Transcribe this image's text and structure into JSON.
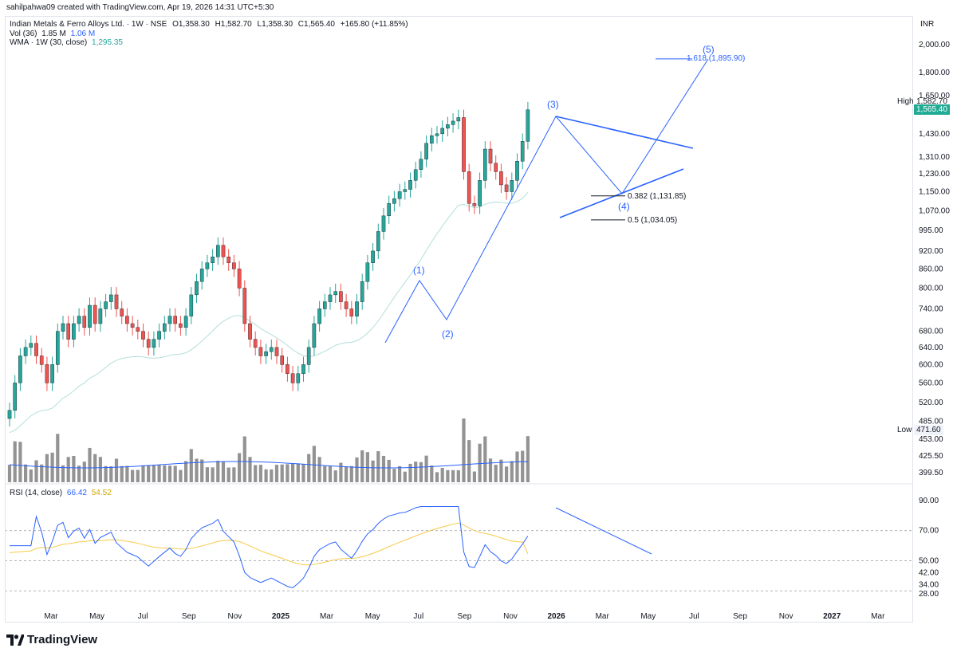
{
  "header": {
    "credit": "sahilpahwa09 created with TradingView.com, Apr 19, 2026 14:31 UTC+5:30",
    "symbol": "Indian Metals & Ferro Alloys Ltd. · 1W · NSE",
    "ohlc_o": "O1,358.30",
    "ohlc_h": "H1,582.70",
    "ohlc_l": "L1,358.30",
    "ohlc_c": "C1,565.40",
    "ohlc_chg": "+165.80 (+11.85%)",
    "vol_label": "Vol (36)",
    "vol_value": "1.85 M",
    "vol_ma": "1.06 M",
    "wma_label": "WMA · 1W (30, close)",
    "wma_value": "1,295.35",
    "rsi_label": "RSI (14, close)",
    "rsi_value": "66.42",
    "rsi_ma": "54.52",
    "currency": "INR"
  },
  "price_tags": {
    "high_label": "High",
    "high_value": "1,582.70",
    "close_value": "1,565.40",
    "low_label": "Low",
    "low_value": "471.60"
  },
  "annotations": {
    "w1": "(1)",
    "w2": "(2)",
    "w3": "(3)",
    "w4": "(4)",
    "w5": "(5)",
    "fib_1618": "1.618 (1,895.90)",
    "fib_0382": "0.382 (1,131.85)",
    "fib_05": "0.5 (1,034.05)"
  },
  "footer": {
    "brand": "TradingView"
  },
  "colors": {
    "up": "#26a69a",
    "down": "#ef5350",
    "volume": "#808080",
    "wma": "#b2dfdb",
    "rsi": "#2962ff",
    "rsi_ma": "#f7c948",
    "drawing": "#2962ff",
    "tag_close": "#22ab94"
  },
  "chart_data": {
    "type": "candlestick",
    "title": "Indian Metals & Ferro Alloys Ltd. · 1W · NSE",
    "x_ticks": [
      "Mar",
      "May",
      "Jul",
      "Sep",
      "Nov",
      "2025",
      "Mar",
      "May",
      "Jul",
      "Sep",
      "Nov",
      "2026",
      "Mar",
      "May",
      "Jul",
      "Sep",
      "Nov",
      "2027",
      "Mar"
    ],
    "price_ticks": [
      "2,000.00",
      "1,800.00",
      "1,650.00",
      "1,430.00",
      "1,310.00",
      "1,230.00",
      "1,150.00",
      "1,070.00",
      "995.00",
      "920.00",
      "860.00",
      "800.00",
      "740.00",
      "680.00",
      "640.00",
      "600.00",
      "560.00",
      "520.00",
      "485.00",
      "453.00",
      "425.50",
      "399.50"
    ],
    "rsi_ticks": [
      "90.00",
      "70.00",
      "50.00",
      "42.00",
      "34.00",
      "28.00"
    ],
    "scale": "log",
    "close_series": [
      505,
      560,
      620,
      640,
      650,
      620,
      600,
      560,
      600,
      680,
      700,
      660,
      700,
      720,
      690,
      750,
      700,
      740,
      760,
      780,
      740,
      720,
      700,
      690,
      680,
      660,
      640,
      660,
      680,
      700,
      720,
      700,
      690,
      720,
      780,
      820,
      860,
      880,
      900,
      940,
      900,
      880,
      860,
      800,
      700,
      660,
      640,
      620,
      630,
      640,
      620,
      600,
      580,
      560,
      580,
      600,
      640,
      700,
      740,
      760,
      780,
      790,
      760,
      740,
      720,
      760,
      820,
      880,
      920,
      990,
      1050,
      1100,
      1120,
      1150,
      1160,
      1200,
      1250,
      1300,
      1380,
      1420,
      1430,
      1460,
      1480,
      1500,
      1520,
      1240,
      1100,
      1090,
      1200,
      1350,
      1280,
      1240,
      1180,
      1150,
      1200,
      1290,
      1390,
      1565
    ],
    "high": 1582.7,
    "low": 471.6,
    "fib_levels": [
      {
        "label": "1.618",
        "value": 1895.9
      },
      {
        "label": "0.382",
        "value": 1131.85
      },
      {
        "label": "0.5",
        "value": 1034.05
      }
    ],
    "rsi_last": 66.42,
    "rsi_ma_last": 54.52
  }
}
